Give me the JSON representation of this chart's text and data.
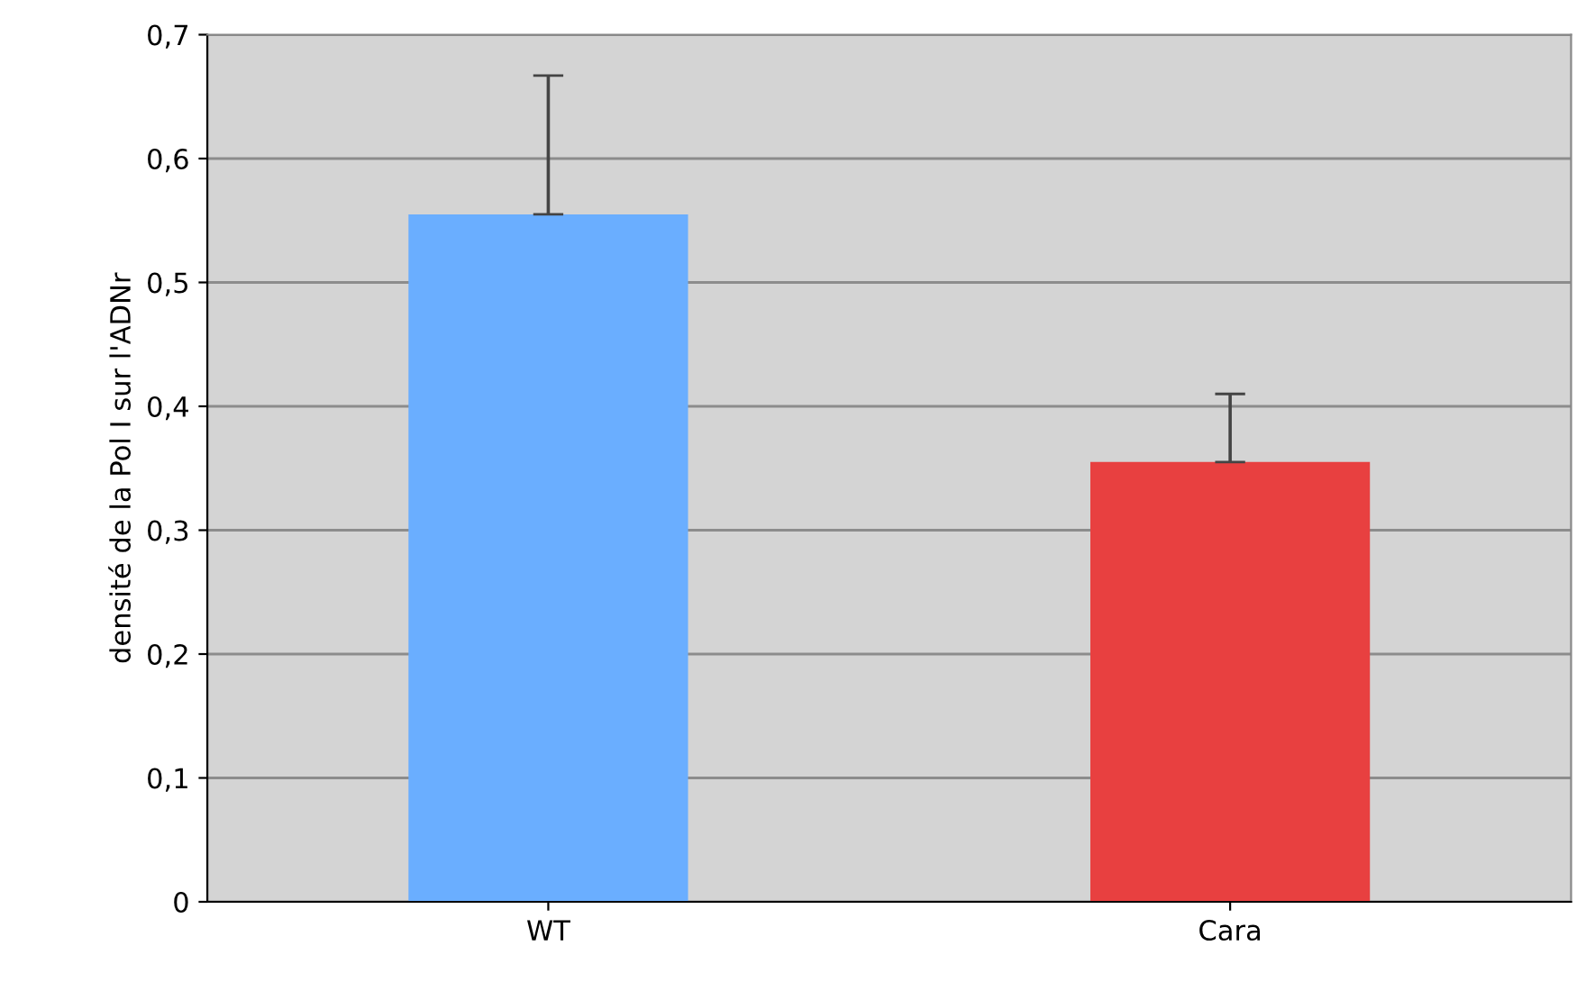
{
  "chart_data": {
    "type": "bar",
    "ylabel": "densité de la Pol I sur l'ADNr",
    "categories": [
      "WT",
      "Cara"
    ],
    "values": [
      0.555,
      0.355
    ],
    "colors": [
      "#6aaeff",
      "#e84040"
    ],
    "errors": [
      [
        0.555,
        0.667
      ],
      [
        0.355,
        0.41
      ]
    ],
    "ylim": [
      0,
      0.7
    ],
    "yticks": [
      0,
      {
        "value": 0.1,
        "label": "0,1"
      },
      {
        "value": 0.2,
        "label": "0,2"
      },
      {
        "value": 0.3,
        "label": "0,3"
      },
      {
        "value": 0.4,
        "label": "0,4"
      },
      {
        "value": 0.5,
        "label": "0,5"
      },
      {
        "value": 0.6,
        "label": "0,6"
      },
      {
        "value": 0.7,
        "label": "0,7"
      }
    ],
    "grid": "y"
  }
}
